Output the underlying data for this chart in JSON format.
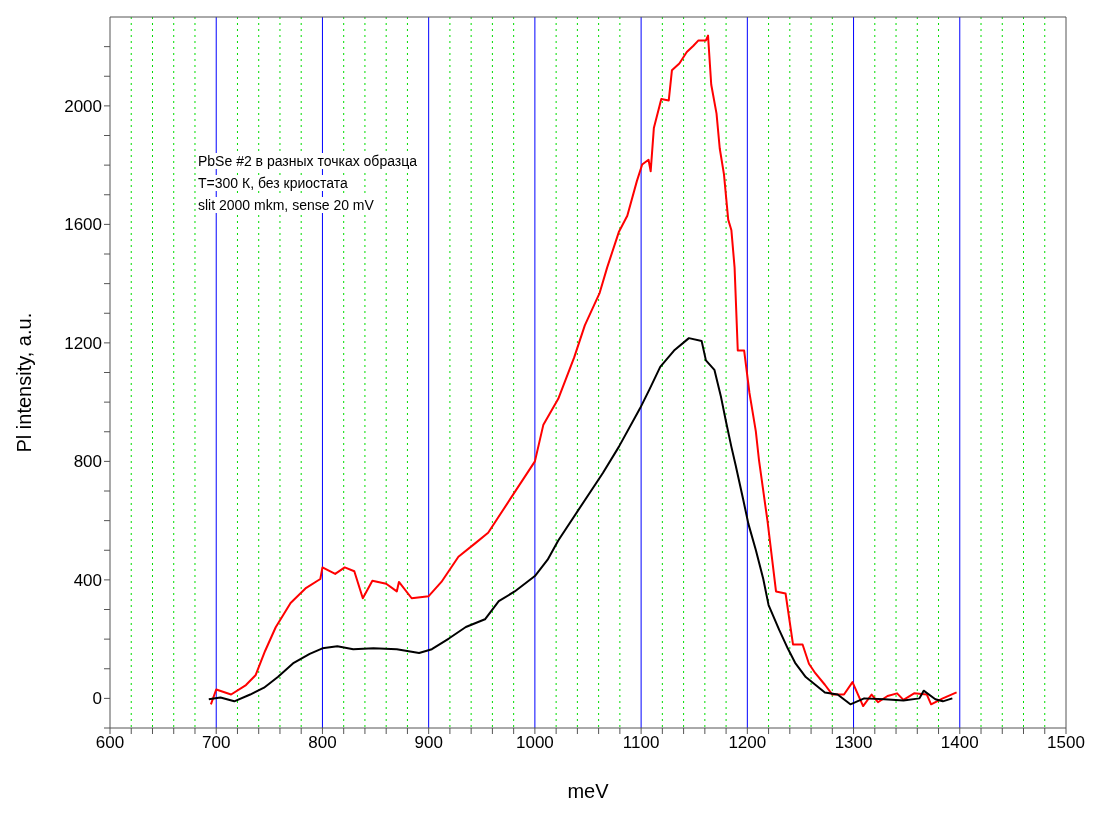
{
  "chart_data": {
    "type": "line",
    "xlabel": "meV",
    "ylabel": "Pl intensity, a.u.",
    "annotations": [
      "PbSe #2 в разных точках образца",
      "T=300 К, без криостата",
      "slit 2000 mkm, sense 20 mV"
    ],
    "xlim": [
      600,
      1500
    ],
    "xticks": [
      600,
      {
        "value": 620,
        "label": null
      },
      {
        "value": 640,
        "label": null
      },
      {
        "value": 660,
        "label": null
      },
      {
        "value": 680,
        "label": null
      },
      700,
      {
        "value": 720,
        "label": null
      },
      {
        "value": 740,
        "label": null
      },
      {
        "value": 760,
        "label": null
      },
      {
        "value": 780,
        "label": null
      },
      800,
      {
        "value": 820,
        "label": null
      },
      {
        "value": 840,
        "label": null
      },
      {
        "value": 860,
        "label": null
      },
      {
        "value": 880,
        "label": null
      },
      900,
      {
        "value": 920,
        "label": null
      },
      {
        "value": 940,
        "label": null
      },
      {
        "value": 960,
        "label": null
      },
      {
        "value": 980,
        "label": null
      },
      1000,
      {
        "value": 1020,
        "label": null
      },
      {
        "value": 1040,
        "label": null
      },
      {
        "value": 1060,
        "label": null
      },
      {
        "value": 1080,
        "label": null
      },
      1100,
      {
        "value": 1120,
        "label": null
      },
      {
        "value": 1140,
        "label": null
      },
      {
        "value": 1160,
        "label": null
      },
      {
        "value": 1180,
        "label": null
      },
      1200,
      {
        "value": 1220,
        "label": null
      },
      {
        "value": 1240,
        "label": null
      },
      {
        "value": 1260,
        "label": null
      },
      {
        "value": 1280,
        "label": null
      },
      1300,
      {
        "value": 1320,
        "label": null
      },
      {
        "value": 1340,
        "label": null
      },
      {
        "value": 1360,
        "label": null
      },
      {
        "value": 1380,
        "label": null
      },
      1400,
      {
        "value": 1420,
        "label": null
      },
      {
        "value": 1440,
        "label": null
      },
      {
        "value": 1460,
        "label": null
      },
      {
        "value": 1480,
        "label": null
      },
      1500
    ],
    "ylim": [
      -100,
      2300
    ],
    "yticks": [
      {
        "value": -100,
        "label": null
      },
      0,
      {
        "value": 100,
        "label": null
      },
      {
        "value": 200,
        "label": null
      },
      {
        "value": 300,
        "label": null
      },
      400,
      {
        "value": 500,
        "label": null
      },
      {
        "value": 600,
        "label": null
      },
      {
        "value": 700,
        "label": null
      },
      800,
      {
        "value": 900,
        "label": null
      },
      {
        "value": 1000,
        "label": null
      },
      {
        "value": 1100,
        "label": null
      },
      1200,
      {
        "value": 1300,
        "label": null
      },
      {
        "value": 1400,
        "label": null
      },
      {
        "value": 1500,
        "label": null
      },
      1600,
      {
        "value": 1700,
        "label": null
      },
      {
        "value": 1800,
        "label": null
      },
      {
        "value": 1900,
        "label": null
      },
      2000,
      {
        "value": 2100,
        "label": null
      },
      {
        "value": 2200,
        "label": null
      }
    ],
    "grid": "x",
    "marker": "none",
    "line_style": "solid",
    "series": [
      {
        "color": "#ff0000",
        "x": [
          695,
          700,
          714,
          728,
          737,
          746,
          756,
          770,
          784,
          798,
          800,
          812,
          821,
          830,
          838,
          847,
          860,
          870,
          872,
          884,
          900,
          912,
          928,
          944,
          956,
          1000,
          1008,
          1022,
          1037,
          1047,
          1061,
          1068,
          1079,
          1087,
          1096,
          1101,
          1107,
          1109,
          1112,
          1119,
          1126,
          1129,
          1136,
          1143,
          1149,
          1154,
          1161,
          1163,
          1166,
          1171,
          1174,
          1178,
          1182,
          1185,
          1188,
          1191,
          1197,
          1202,
          1208,
          1211,
          1219,
          1227,
          1236,
          1243,
          1252,
          1258,
          1264,
          1273,
          1280,
          1291,
          1299,
          1309,
          1317,
          1323,
          1332,
          1341,
          1347,
          1357,
          1369,
          1373,
          1384,
          1397
        ],
        "values": [
          -20,
          30,
          13,
          45,
          78,
          160,
          240,
          322,
          371,
          403,
          442,
          420,
          442,
          429,
          338,
          397,
          387,
          361,
          393,
          338,
          345,
          393,
          478,
          524,
          559,
          800,
          924,
          1011,
          1151,
          1259,
          1369,
          1454,
          1574,
          1629,
          1746,
          1802,
          1818,
          1779,
          1925,
          2023,
          2018,
          2120,
          2143,
          2182,
          2202,
          2221,
          2221,
          2237,
          2072,
          1974,
          1857,
          1769,
          1616,
          1580,
          1454,
          1174,
          1174,
          1031,
          901,
          803,
          598,
          361,
          354,
          182,
          182,
          117,
          85,
          46,
          13,
          13,
          55,
          -26,
          13,
          -13,
          8,
          17,
          -5,
          17,
          13,
          -20,
          0,
          20
        ]
      },
      {
        "color": "#000000",
        "x": [
          693,
          704,
          717,
          732,
          745,
          758,
          773,
          788,
          800,
          814,
          829,
          848,
          870,
          891,
          903,
          919,
          935,
          953,
          966,
          981,
          1000,
          1012,
          1022,
          1064,
          1079,
          1099,
          1108,
          1118,
          1131,
          1145,
          1157,
          1161,
          1169,
          1175,
          1180,
          1185,
          1189,
          1196,
          1201,
          1208,
          1215,
          1220,
          1230,
          1238,
          1245,
          1255,
          1264,
          1273,
          1285,
          1297,
          1310,
          1329,
          1347,
          1362,
          1366,
          1377,
          1384,
          1393
        ],
        "values": [
          -3,
          3,
          -10,
          13,
          36,
          72,
          120,
          150,
          169,
          176,
          166,
          169,
          166,
          153,
          166,
          202,
          241,
          267,
          328,
          361,
          413,
          468,
          533,
          761,
          849,
          979,
          1044,
          1119,
          1174,
          1216,
          1206,
          1141,
          1109,
          1021,
          933,
          849,
          787,
          673,
          589,
          501,
          403,
          315,
          231,
          169,
          120,
          72,
          46,
          20,
          13,
          -20,
          0,
          -3,
          -7,
          0,
          26,
          -3,
          -10,
          0
        ]
      }
    ]
  }
}
